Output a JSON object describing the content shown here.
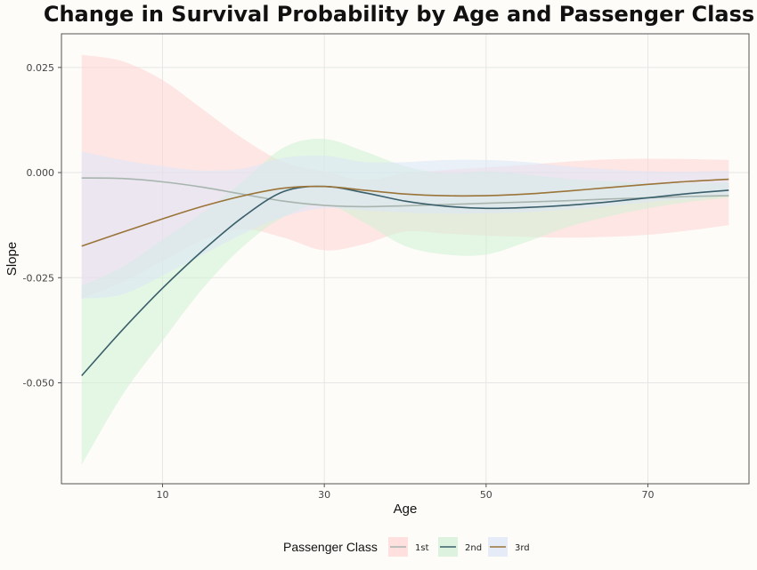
{
  "chart_data": {
    "type": "area",
    "title": "Change in Survival Probability by Age and Passenger Class",
    "xlabel": "Age",
    "ylabel": "Slope",
    "xlim": [
      -2.5,
      82.5
    ],
    "ylim": [
      -0.074,
      0.033
    ],
    "x_ticks": [
      10,
      30,
      50,
      70
    ],
    "x_tick_labels": [
      "10",
      "30",
      "50",
      "70"
    ],
    "y_ticks": [
      0.025,
      0.0,
      -0.025,
      -0.05
    ],
    "y_tick_labels": [
      "0.025",
      "0.000",
      "-0.025",
      "-0.050"
    ],
    "grid": true,
    "legend": {
      "title": "Passenger Class",
      "position": "bottom"
    },
    "series": [
      {
        "name": "1st",
        "line_color": "#a7b5ae",
        "fill_color": "#ffd4d4",
        "x": [
          0,
          5,
          10,
          15,
          20,
          25,
          30,
          35,
          40,
          45,
          50,
          55,
          60,
          65,
          70,
          75,
          80
        ],
        "y": [
          -0.0013,
          -0.0014,
          -0.0022,
          -0.0035,
          -0.0052,
          -0.0068,
          -0.0078,
          -0.0081,
          -0.0079,
          -0.0076,
          -0.0073,
          -0.007,
          -0.0067,
          -0.0063,
          -0.006,
          -0.0057,
          -0.0055
        ],
        "lower": [
          -0.03,
          -0.026,
          -0.021,
          -0.016,
          -0.0135,
          -0.0155,
          -0.0185,
          -0.017,
          -0.014,
          -0.0145,
          -0.015,
          -0.0153,
          -0.0155,
          -0.0153,
          -0.0148,
          -0.0138,
          -0.0125
        ],
        "upper": [
          0.028,
          0.0265,
          0.022,
          0.015,
          0.008,
          0.0025,
          0.0002,
          -0.0018,
          -0.0002,
          0.0006,
          0.0012,
          0.0018,
          0.0026,
          0.0031,
          0.0033,
          0.0032,
          0.003
        ]
      },
      {
        "name": "2nd",
        "line_color": "#3a5f6b",
        "fill_color": "#d0f0d4",
        "x": [
          0,
          5,
          10,
          15,
          20,
          25,
          30,
          35,
          40,
          45,
          50,
          55,
          60,
          65,
          70,
          75,
          80
        ],
        "y": [
          -0.0483,
          -0.0375,
          -0.0275,
          -0.0185,
          -0.0105,
          -0.0045,
          -0.0033,
          -0.0048,
          -0.0068,
          -0.008,
          -0.0085,
          -0.0083,
          -0.0078,
          -0.007,
          -0.006,
          -0.005,
          -0.0042
        ],
        "lower": [
          -0.0695,
          -0.053,
          -0.04,
          -0.0275,
          -0.0175,
          -0.0105,
          -0.0075,
          -0.012,
          -0.0175,
          -0.0195,
          -0.0195,
          -0.0165,
          -0.013,
          -0.0105,
          -0.0085,
          -0.007,
          -0.006
        ],
        "upper": [
          -0.027,
          -0.0225,
          -0.016,
          -0.0095,
          -0.002,
          0.006,
          0.008,
          0.005,
          0.0015,
          -0.0002,
          0.0003,
          -0.0005,
          -0.0015,
          -0.002,
          -0.0025,
          -0.0025,
          -0.0025
        ]
      },
      {
        "name": "3rd",
        "line_color": "#9a7438",
        "fill_color": "#dbe6f7",
        "x": [
          0,
          5,
          10,
          15,
          20,
          25,
          30,
          35,
          40,
          45,
          50,
          55,
          60,
          65,
          70,
          75,
          80
        ],
        "y": [
          -0.0175,
          -0.0142,
          -0.011,
          -0.008,
          -0.0055,
          -0.0037,
          -0.0033,
          -0.0042,
          -0.0051,
          -0.0055,
          -0.0055,
          -0.0051,
          -0.0044,
          -0.0036,
          -0.0028,
          -0.0021,
          -0.0016
        ],
        "lower": [
          -0.03,
          -0.029,
          -0.0245,
          -0.0195,
          -0.0145,
          -0.0105,
          -0.0085,
          -0.009,
          -0.0095,
          -0.0098,
          -0.0097,
          -0.0094,
          -0.0088,
          -0.008,
          -0.007,
          -0.0062,
          -0.0055
        ],
        "upper": [
          0.005,
          0.003,
          0.0015,
          0.0005,
          0.001,
          0.0035,
          0.004,
          0.0025,
          0.0025,
          0.003,
          0.003,
          0.0025,
          0.0015,
          0.0008,
          0.0003,
          0.0002,
          0.0005
        ]
      }
    ]
  }
}
